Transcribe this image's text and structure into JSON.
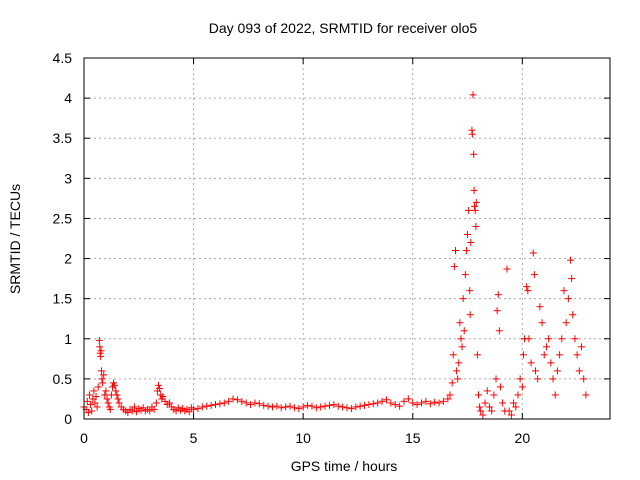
{
  "chart_data": {
    "type": "scatter",
    "title": "Day 093 of 2022, SRMTID for receiver olo5",
    "xlabel": "GPS time / hours",
    "ylabel": "SRMTID / TECUs",
    "xlim": [
      0,
      24
    ],
    "ylim": [
      0,
      4.5
    ],
    "xticks": [
      0,
      5,
      10,
      15,
      20
    ],
    "yticks": [
      0,
      0.5,
      1,
      1.5,
      2,
      2.5,
      3,
      3.5,
      4,
      4.5
    ],
    "xtick_labels": [
      "0",
      "5",
      "10",
      "15",
      "20"
    ],
    "ytick_labels": [
      "0",
      "0.5",
      "1",
      "1.5",
      "2",
      "2.5",
      "3",
      "3.5",
      "4",
      "4.5"
    ],
    "grid": true,
    "marker": "+",
    "marker_color": "#ff0000",
    "series": [
      {
        "name": "SRMTID",
        "points": [
          [
            0.0,
            0.15
          ],
          [
            0.1,
            0.12
          ],
          [
            0.15,
            0.22
          ],
          [
            0.2,
            0.08
          ],
          [
            0.25,
            0.3
          ],
          [
            0.3,
            0.18
          ],
          [
            0.35,
            0.1
          ],
          [
            0.4,
            0.25
          ],
          [
            0.45,
            0.35
          ],
          [
            0.5,
            0.2
          ],
          [
            0.55,
            0.28
          ],
          [
            0.6,
            0.15
          ],
          [
            0.65,
            0.4
          ],
          [
            0.7,
            0.98
          ],
          [
            0.72,
            0.9
          ],
          [
            0.74,
            0.82
          ],
          [
            0.76,
            0.78
          ],
          [
            0.78,
            0.85
          ],
          [
            0.8,
            0.6
          ],
          [
            0.82,
            0.5
          ],
          [
            0.85,
            0.45
          ],
          [
            0.9,
            0.55
          ],
          [
            0.95,
            0.3
          ],
          [
            1.0,
            0.35
          ],
          [
            1.05,
            0.25
          ],
          [
            1.1,
            0.2
          ],
          [
            1.15,
            0.15
          ],
          [
            1.2,
            0.12
          ],
          [
            1.25,
            0.3
          ],
          [
            1.3,
            0.4
          ],
          [
            1.35,
            0.45
          ],
          [
            1.4,
            0.42
          ],
          [
            1.45,
            0.35
          ],
          [
            1.5,
            0.3
          ],
          [
            1.55,
            0.25
          ],
          [
            1.6,
            0.2
          ],
          [
            1.7,
            0.15
          ],
          [
            1.8,
            0.12
          ],
          [
            1.9,
            0.1
          ],
          [
            2.0,
            0.08
          ],
          [
            2.1,
            0.12
          ],
          [
            2.2,
            0.1
          ],
          [
            2.3,
            0.15
          ],
          [
            2.4,
            0.09
          ],
          [
            2.5,
            0.13
          ],
          [
            2.6,
            0.11
          ],
          [
            2.7,
            0.14
          ],
          [
            2.8,
            0.1
          ],
          [
            2.9,
            0.12
          ],
          [
            3.0,
            0.1
          ],
          [
            3.1,
            0.15
          ],
          [
            3.2,
            0.12
          ],
          [
            3.3,
            0.2
          ],
          [
            3.35,
            0.35
          ],
          [
            3.4,
            0.42
          ],
          [
            3.45,
            0.38
          ],
          [
            3.5,
            0.3
          ],
          [
            3.55,
            0.25
          ],
          [
            3.6,
            0.28
          ],
          [
            3.7,
            0.22
          ],
          [
            3.8,
            0.18
          ],
          [
            3.9,
            0.2
          ],
          [
            4.0,
            0.15
          ],
          [
            4.1,
            0.12
          ],
          [
            4.2,
            0.1
          ],
          [
            4.3,
            0.14
          ],
          [
            4.4,
            0.11
          ],
          [
            4.5,
            0.13
          ],
          [
            4.6,
            0.1
          ],
          [
            4.7,
            0.12
          ],
          [
            4.8,
            0.09
          ],
          [
            4.9,
            0.14
          ],
          [
            5.0,
            0.12
          ],
          [
            5.2,
            0.13
          ],
          [
            5.4,
            0.15
          ],
          [
            5.6,
            0.16
          ],
          [
            5.8,
            0.17
          ],
          [
            6.0,
            0.18
          ],
          [
            6.2,
            0.19
          ],
          [
            6.4,
            0.2
          ],
          [
            6.6,
            0.22
          ],
          [
            6.8,
            0.25
          ],
          [
            7.0,
            0.24
          ],
          [
            7.2,
            0.22
          ],
          [
            7.4,
            0.2
          ],
          [
            7.6,
            0.18
          ],
          [
            7.8,
            0.2
          ],
          [
            8.0,
            0.19
          ],
          [
            8.2,
            0.17
          ],
          [
            8.4,
            0.16
          ],
          [
            8.6,
            0.15
          ],
          [
            8.8,
            0.16
          ],
          [
            9.0,
            0.14
          ],
          [
            9.2,
            0.15
          ],
          [
            9.4,
            0.16
          ],
          [
            9.6,
            0.14
          ],
          [
            9.8,
            0.13
          ],
          [
            10.0,
            0.15
          ],
          [
            10.2,
            0.17
          ],
          [
            10.4,
            0.16
          ],
          [
            10.6,
            0.14
          ],
          [
            10.8,
            0.15
          ],
          [
            11.0,
            0.16
          ],
          [
            11.2,
            0.17
          ],
          [
            11.4,
            0.18
          ],
          [
            11.6,
            0.16
          ],
          [
            11.8,
            0.15
          ],
          [
            12.0,
            0.14
          ],
          [
            12.2,
            0.13
          ],
          [
            12.4,
            0.15
          ],
          [
            12.6,
            0.16
          ],
          [
            12.8,
            0.17
          ],
          [
            13.0,
            0.18
          ],
          [
            13.2,
            0.19
          ],
          [
            13.4,
            0.2
          ],
          [
            13.6,
            0.22
          ],
          [
            13.8,
            0.24
          ],
          [
            14.0,
            0.2
          ],
          [
            14.2,
            0.18
          ],
          [
            14.4,
            0.16
          ],
          [
            14.6,
            0.22
          ],
          [
            14.8,
            0.25
          ],
          [
            15.0,
            0.2
          ],
          [
            15.2,
            0.18
          ],
          [
            15.4,
            0.2
          ],
          [
            15.6,
            0.22
          ],
          [
            15.8,
            0.19
          ],
          [
            16.0,
            0.21
          ],
          [
            16.2,
            0.2
          ],
          [
            16.4,
            0.22
          ],
          [
            16.6,
            0.25
          ],
          [
            16.7,
            0.3
          ],
          [
            16.8,
            0.45
          ],
          [
            16.85,
            0.8
          ],
          [
            16.9,
            1.9
          ],
          [
            16.95,
            2.1
          ],
          [
            17.0,
            0.6
          ],
          [
            17.05,
            0.5
          ],
          [
            17.1,
            0.7
          ],
          [
            17.15,
            1.2
          ],
          [
            17.2,
            1.0
          ],
          [
            17.25,
            0.9
          ],
          [
            17.3,
            1.5
          ],
          [
            17.35,
            1.1
          ],
          [
            17.4,
            1.8
          ],
          [
            17.45,
            2.1
          ],
          [
            17.5,
            2.3
          ],
          [
            17.55,
            2.6
          ],
          [
            17.6,
            1.6
          ],
          [
            17.62,
            1.3
          ],
          [
            17.65,
            2.2
          ],
          [
            17.7,
            3.6
          ],
          [
            17.72,
            3.55
          ],
          [
            17.75,
            4.04
          ],
          [
            17.78,
            3.3
          ],
          [
            17.8,
            2.85
          ],
          [
            17.82,
            2.65
          ],
          [
            17.85,
            2.6
          ],
          [
            17.88,
            2.4
          ],
          [
            17.9,
            2.7
          ],
          [
            17.95,
            0.8
          ],
          [
            18.0,
            0.3
          ],
          [
            18.05,
            0.15
          ],
          [
            18.1,
            0.1
          ],
          [
            18.2,
            0.05
          ],
          [
            18.3,
            0.2
          ],
          [
            18.4,
            0.35
          ],
          [
            18.5,
            0.15
          ],
          [
            18.6,
            0.1
          ],
          [
            18.7,
            0.3
          ],
          [
            18.8,
            0.5
          ],
          [
            18.85,
            1.35
          ],
          [
            18.9,
            1.55
          ],
          [
            18.95,
            1.1
          ],
          [
            19.0,
            0.4
          ],
          [
            19.1,
            0.2
          ],
          [
            19.2,
            0.1
          ],
          [
            19.3,
            1.87
          ],
          [
            19.4,
            0.1
          ],
          [
            19.5,
            0.05
          ],
          [
            19.6,
            0.2
          ],
          [
            19.7,
            0.15
          ],
          [
            19.8,
            0.3
          ],
          [
            19.9,
            0.5
          ],
          [
            20.0,
            0.4
          ],
          [
            20.05,
            0.8
          ],
          [
            20.1,
            1.0
          ],
          [
            20.2,
            1.65
          ],
          [
            20.25,
            1.6
          ],
          [
            20.3,
            1.0
          ],
          [
            20.4,
            0.7
          ],
          [
            20.5,
            2.07
          ],
          [
            20.55,
            1.8
          ],
          [
            20.6,
            0.6
          ],
          [
            20.7,
            0.5
          ],
          [
            20.8,
            1.4
          ],
          [
            20.9,
            1.2
          ],
          [
            21.0,
            0.8
          ],
          [
            21.1,
            0.9
          ],
          [
            21.2,
            1.0
          ],
          [
            21.3,
            0.7
          ],
          [
            21.4,
            0.5
          ],
          [
            21.5,
            0.3
          ],
          [
            21.6,
            0.6
          ],
          [
            21.7,
            0.8
          ],
          [
            21.8,
            1.0
          ],
          [
            21.9,
            1.6
          ],
          [
            22.0,
            1.2
          ],
          [
            22.1,
            1.5
          ],
          [
            22.2,
            1.98
          ],
          [
            22.25,
            1.75
          ],
          [
            22.3,
            1.3
          ],
          [
            22.4,
            1.0
          ],
          [
            22.5,
            0.8
          ],
          [
            22.6,
            0.6
          ],
          [
            22.7,
            0.9
          ],
          [
            22.8,
            0.5
          ],
          [
            22.9,
            0.3
          ]
        ]
      }
    ]
  }
}
